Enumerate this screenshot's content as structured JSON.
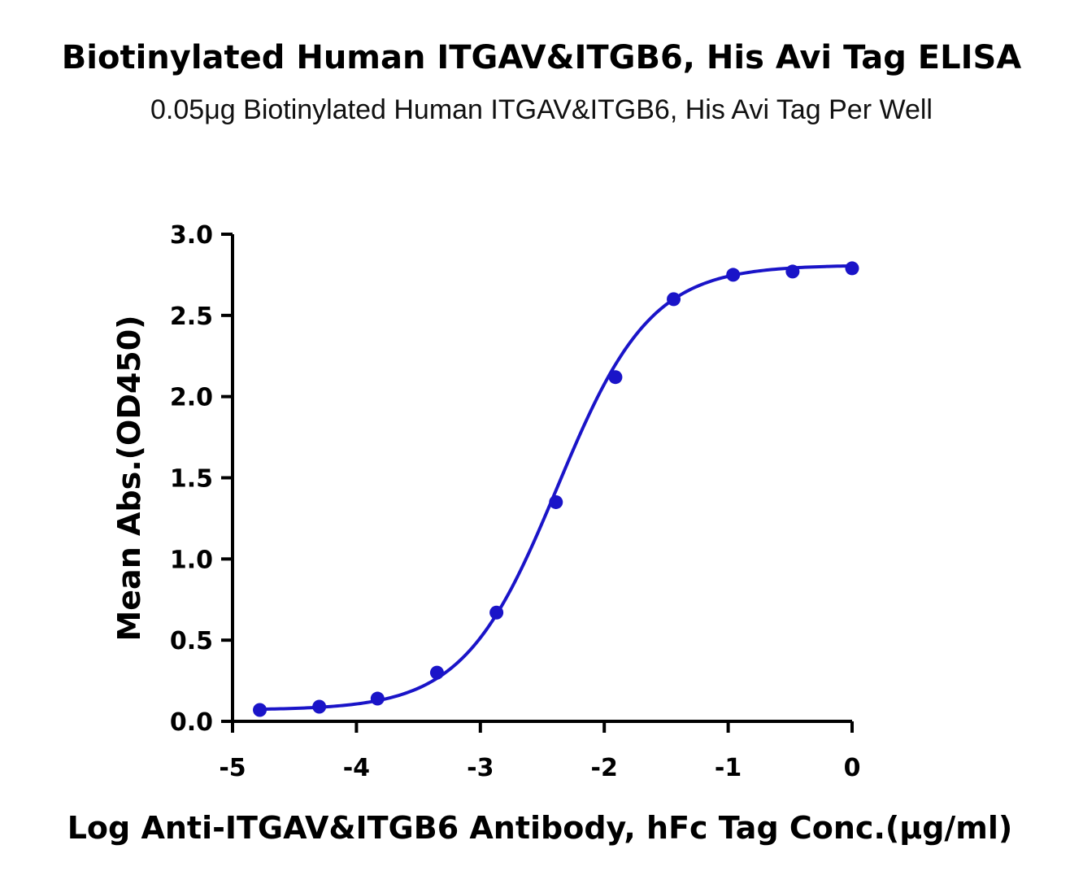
{
  "header": {
    "title": "Biotinylated Human ITGAV&ITGB6, His Avi Tag ELISA",
    "subtitle": "0.05μg Biotinylated Human ITGAV&ITGB6, His Avi Tag Per Well"
  },
  "colors": {
    "series": "#1a14c8",
    "axis": "#000000"
  },
  "chart_data": {
    "type": "scatter",
    "title": "Biotinylated Human ITGAV&ITGB6, His Avi Tag ELISA",
    "subtitle": "0.05μg Biotinylated Human ITGAV&ITGB6, His Avi Tag Per Well",
    "xlabel": "Log Anti-ITGAV&ITGB6  Antibody, hFc Tag Conc.(μg/ml)",
    "ylabel": "Mean Abs.(OD450)",
    "xlim": [
      -5,
      0
    ],
    "ylim": [
      0,
      3.0
    ],
    "xticks": [
      "-5",
      "-4",
      "-3",
      "-2",
      "-1",
      "0"
    ],
    "yticks": [
      "0.0",
      "0.5",
      "1.0",
      "1.5",
      "2.0",
      "2.5",
      "3.0"
    ],
    "grid": false,
    "legend": "none",
    "series": [
      {
        "x": [
          -4.78,
          -4.3,
          -3.83,
          -3.35,
          -2.87,
          -2.39,
          -1.91,
          -1.44,
          -0.96,
          -0.48,
          0.0
        ],
        "y": [
          0.07,
          0.09,
          0.14,
          0.3,
          0.67,
          1.35,
          2.12,
          2.6,
          2.75,
          2.77,
          2.79
        ],
        "fit": "4PL sigmoid curve"
      }
    ]
  }
}
